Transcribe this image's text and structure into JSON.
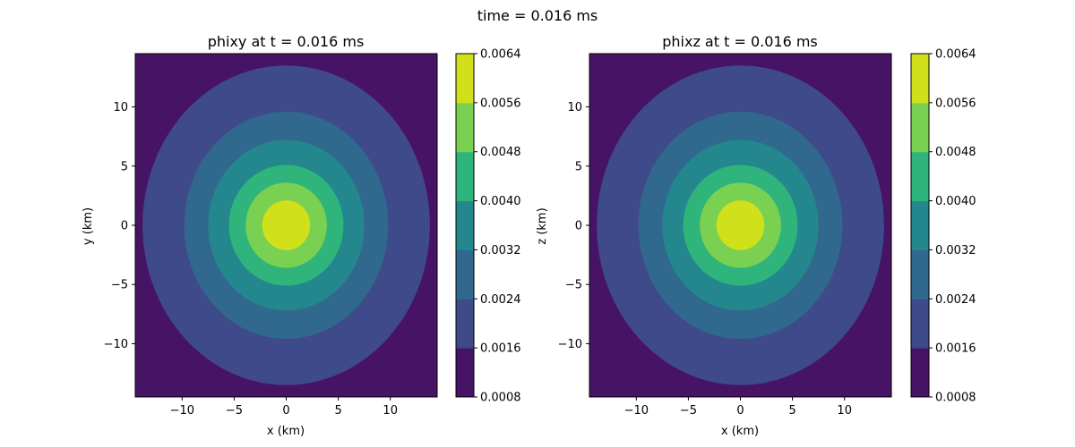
{
  "suptitle": "time = 0.016 ms",
  "chart_data": [
    {
      "type": "heatmap",
      "title": "phixy at t = 0.016 ms",
      "xlabel": "x (km)",
      "ylabel": "y (km)",
      "xlim": [
        -14.5,
        14.5
      ],
      "ylim": [
        -14.5,
        14.5
      ],
      "xticks": [
        -10,
        -5,
        0,
        5,
        10
      ],
      "yticks": [
        -10,
        -5,
        0,
        5,
        10
      ],
      "xtick_labels": [
        "−10",
        "−5",
        "0",
        "5",
        "10"
      ],
      "ytick_labels": [
        "−10",
        "−5",
        "0",
        "5",
        "10"
      ],
      "contour_levels": [
        0.0008,
        0.0016,
        0.0024,
        0.0032,
        0.004,
        0.0048,
        0.0056,
        0.0064
      ],
      "colorbar_labels": [
        "0.0008",
        "0.0016",
        "0.0024",
        "0.0032",
        "0.0040",
        "0.0048",
        "0.0056",
        "0.0064"
      ],
      "level_colors": [
        "#471365",
        "#3e4a89",
        "#30688e",
        "#24878e",
        "#2fb47c",
        "#7ad151",
        "#d0e11c"
      ],
      "contour_semi_axes_km": [
        {
          "level": 0.0016,
          "rx": 13.8,
          "ry": 13.5
        },
        {
          "level": 0.0024,
          "rx": 9.8,
          "ry": 9.6
        },
        {
          "level": 0.0032,
          "rx": 7.5,
          "ry": 7.2
        },
        {
          "level": 0.004,
          "rx": 5.5,
          "ry": 5.1
        },
        {
          "level": 0.0048,
          "rx": 3.9,
          "ry": 3.6
        },
        {
          "level": 0.0056,
          "rx": 2.3,
          "ry": 2.1
        }
      ],
      "grid": false,
      "colorbar": "right"
    },
    {
      "type": "heatmap",
      "title": "phixz at t = 0.016 ms",
      "xlabel": "x (km)",
      "ylabel": "z (km)",
      "xlim": [
        -14.5,
        14.5
      ],
      "ylim": [
        -14.5,
        14.5
      ],
      "xticks": [
        -10,
        -5,
        0,
        5,
        10
      ],
      "yticks": [
        -10,
        -5,
        0,
        5,
        10
      ],
      "xtick_labels": [
        "−10",
        "−5",
        "0",
        "5",
        "10"
      ],
      "ytick_labels": [
        "−10",
        "−5",
        "0",
        "5",
        "10"
      ],
      "contour_levels": [
        0.0008,
        0.0016,
        0.0024,
        0.0032,
        0.004,
        0.0048,
        0.0056,
        0.0064
      ],
      "colorbar_labels": [
        "0.0008",
        "0.0016",
        "0.0024",
        "0.0032",
        "0.0040",
        "0.0048",
        "0.0056",
        "0.0064"
      ],
      "level_colors": [
        "#471365",
        "#3e4a89",
        "#30688e",
        "#24878e",
        "#2fb47c",
        "#7ad151",
        "#d0e11c"
      ],
      "contour_semi_axes_km": [
        {
          "level": 0.0016,
          "rx": 13.8,
          "ry": 13.5
        },
        {
          "level": 0.0024,
          "rx": 9.8,
          "ry": 9.6
        },
        {
          "level": 0.0032,
          "rx": 7.5,
          "ry": 7.2
        },
        {
          "level": 0.004,
          "rx": 5.5,
          "ry": 5.1
        },
        {
          "level": 0.0048,
          "rx": 3.9,
          "ry": 3.6
        },
        {
          "level": 0.0056,
          "rx": 2.3,
          "ry": 2.1
        }
      ],
      "grid": false,
      "colorbar": "right"
    }
  ]
}
